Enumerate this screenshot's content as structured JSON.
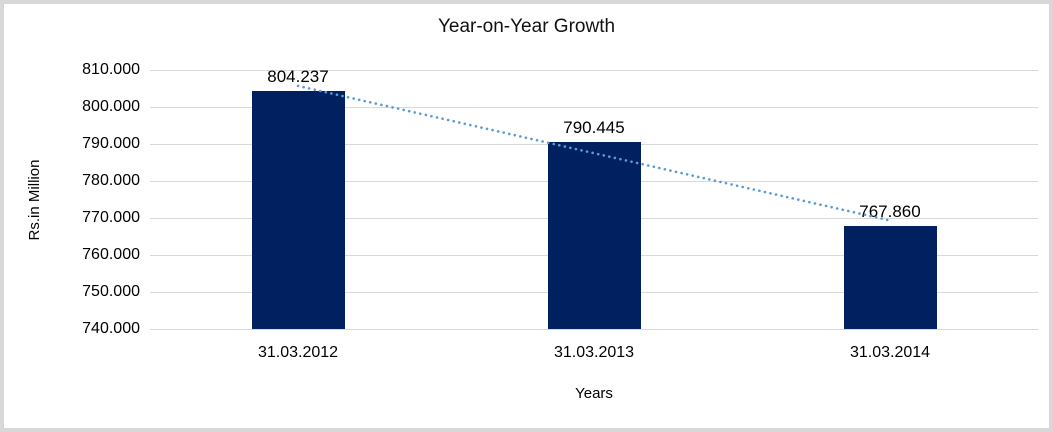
{
  "chart_data": {
    "type": "bar",
    "title": "Year-on-Year Growth",
    "categories": [
      "31.03.2012",
      "31.03.2013",
      "31.03.2014"
    ],
    "values": [
      804.237,
      790.445,
      767.86
    ],
    "data_labels": [
      "804.237",
      "790.445",
      "767.860"
    ],
    "xlabel": "Years",
    "ylabel": "Rs.in Million",
    "ylim": [
      740,
      810
    ],
    "ytick_step": 10,
    "ytick_labels": [
      "740.000",
      "750.000",
      "760.000",
      "770.000",
      "780.000",
      "790.000",
      "800.000",
      "810.000"
    ],
    "grid": true,
    "legend": "none",
    "bar_color": "#002060",
    "gridline_color": "#D9D9D9",
    "trendline": {
      "style": "dotted",
      "color": "#5B9BD5",
      "fit": "linear"
    }
  }
}
